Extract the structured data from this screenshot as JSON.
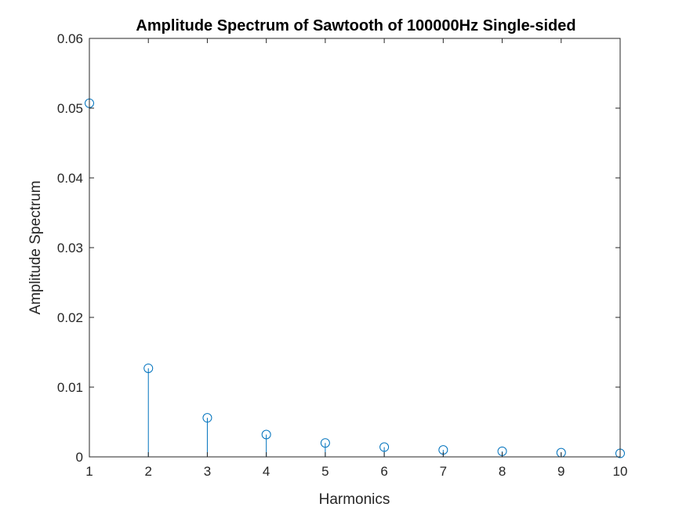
{
  "chart_data": {
    "type": "stem",
    "title": "Amplitude Spectrum of Sawtooth of 100000Hz Single-sided",
    "xlabel": "Harmonics",
    "ylabel": "Amplitude Spectrum",
    "xlim": [
      1,
      10
    ],
    "ylim": [
      0,
      0.06
    ],
    "xticks": [
      1,
      2,
      3,
      4,
      5,
      6,
      7,
      8,
      9,
      10
    ],
    "xtick_labels": [
      "1",
      "2",
      "3",
      "4",
      "5",
      "6",
      "7",
      "8",
      "9",
      "10"
    ],
    "yticks": [
      0,
      0.01,
      0.02,
      0.03,
      0.04,
      0.05,
      0.06
    ],
    "ytick_labels": [
      "0",
      "0.01",
      "0.02",
      "0.03",
      "0.04",
      "0.05",
      "0.06"
    ],
    "grid": false,
    "box": true,
    "marker": "circle",
    "series_color": "#0072BD",
    "axis_color": "#262626",
    "x": [
      1,
      2,
      3,
      4,
      5,
      6,
      7,
      8,
      9,
      10
    ],
    "values": [
      0.0507,
      0.0127,
      0.0056,
      0.0032,
      0.002,
      0.0014,
      0.001,
      0.0008,
      0.0006,
      0.0005
    ]
  }
}
